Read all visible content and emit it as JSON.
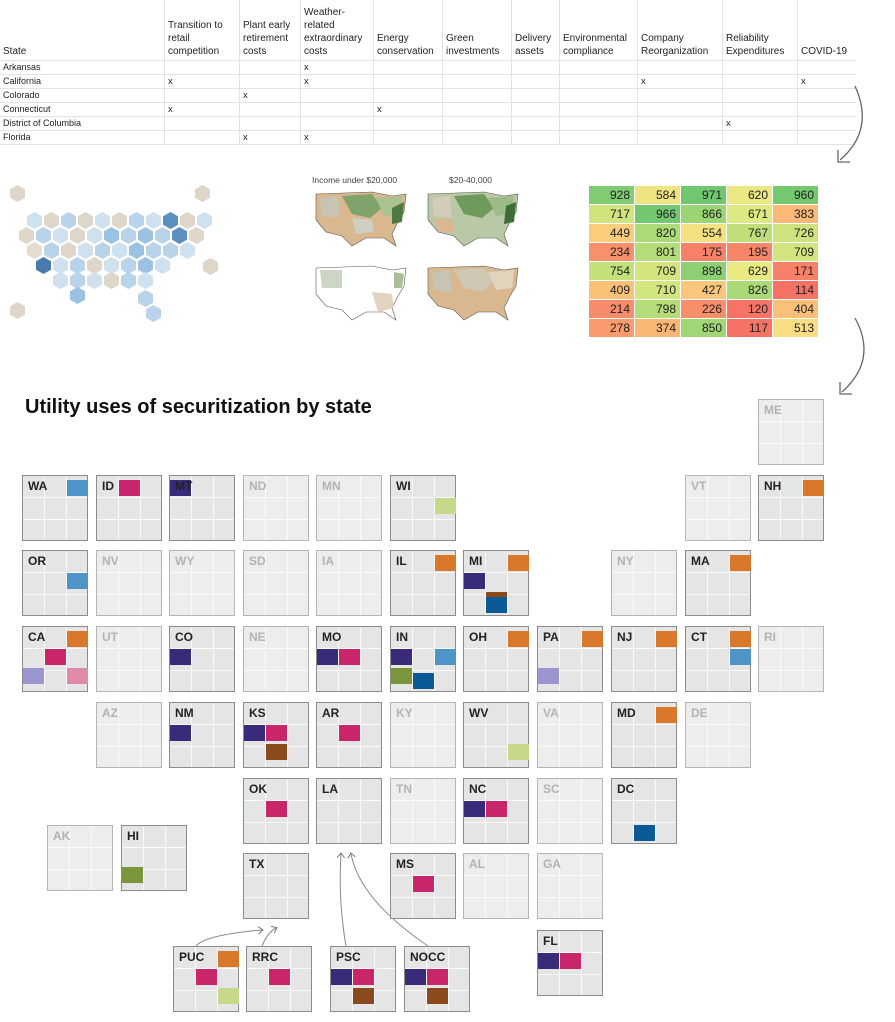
{
  "table": {
    "headers": [
      "State",
      "Transition to retail competition",
      "Plant early retirement costs",
      "Weather-related extraordinary costs",
      "Energy conservation",
      "Green investments",
      "Delivery assets",
      "Environmental compliance",
      "Company Reorganization",
      "Reliability Expenditures",
      "COVID-19"
    ],
    "rows": [
      [
        "Arkansas",
        "",
        "",
        "x",
        "",
        "",
        "",
        "",
        "",
        "",
        ""
      ],
      [
        "California",
        "x",
        "",
        "x",
        "",
        "",
        "",
        "",
        "x",
        "",
        "x"
      ],
      [
        "Colorado",
        "",
        "x",
        "",
        "",
        "",
        "",
        "",
        "",
        "",
        ""
      ],
      [
        "Connecticut",
        "x",
        "",
        "",
        "x",
        "",
        "",
        "",
        "",
        "",
        ""
      ],
      [
        "District of Columbia",
        "",
        "",
        "",
        "",
        "",
        "",
        "",
        "",
        "x",
        ""
      ],
      [
        "Florida",
        "",
        "x",
        "x",
        "",
        "",
        "",
        "",
        "",
        "",
        ""
      ]
    ]
  },
  "income_map": {
    "label1": "Income under $20,000",
    "label2": "$20-40,000"
  },
  "heatmap": [
    [
      928,
      584,
      971,
      620,
      960
    ],
    [
      717,
      966,
      866,
      671,
      383
    ],
    [
      449,
      820,
      554,
      767,
      726
    ],
    [
      234,
      801,
      175,
      195,
      709
    ],
    [
      754,
      709,
      898,
      629,
      171
    ],
    [
      409,
      710,
      427,
      826,
      114
    ],
    [
      214,
      798,
      226,
      120,
      404
    ],
    [
      278,
      374,
      850,
      117,
      513
    ]
  ],
  "main": {
    "title": "Utility uses of securitization by state",
    "colors": {
      "navy": "#3a2a7a",
      "magenta": "#c8256b",
      "orange": "#d9782a",
      "steel": "#4e94c6",
      "lime": "#c6d98a",
      "brown": "#8a4a1e",
      "blue": "#0b5a96",
      "olive": "#7a953a",
      "lavender": "#9a94cf",
      "pink": "#e08aaa"
    },
    "states": [
      {
        "ab": "ME",
        "empty": true
      },
      {
        "ab": "WA",
        "empty": false
      },
      {
        "ab": "ID",
        "empty": false
      },
      {
        "ab": "MT",
        "empty": false
      },
      {
        "ab": "ND",
        "empty": true
      },
      {
        "ab": "MN",
        "empty": true
      },
      {
        "ab": "WI",
        "empty": false
      },
      {
        "ab": "VT",
        "empty": true
      },
      {
        "ab": "NH",
        "empty": false
      },
      {
        "ab": "OR",
        "empty": false
      },
      {
        "ab": "NV",
        "empty": true
      },
      {
        "ab": "WY",
        "empty": true
      },
      {
        "ab": "SD",
        "empty": true
      },
      {
        "ab": "IA",
        "empty": true
      },
      {
        "ab": "IL",
        "empty": false
      },
      {
        "ab": "MI",
        "empty": false
      },
      {
        "ab": "NY",
        "empty": true
      },
      {
        "ab": "MA",
        "empty": false
      },
      {
        "ab": "CA",
        "empty": false
      },
      {
        "ab": "UT",
        "empty": true
      },
      {
        "ab": "CO",
        "empty": false
      },
      {
        "ab": "NE",
        "empty": true
      },
      {
        "ab": "MO",
        "empty": false
      },
      {
        "ab": "IN",
        "empty": false
      },
      {
        "ab": "OH",
        "empty": false
      },
      {
        "ab": "PA",
        "empty": false
      },
      {
        "ab": "NJ",
        "empty": false
      },
      {
        "ab": "CT",
        "empty": false
      },
      {
        "ab": "RI",
        "empty": true
      },
      {
        "ab": "AZ",
        "empty": true
      },
      {
        "ab": "NM",
        "empty": false
      },
      {
        "ab": "KS",
        "empty": false
      },
      {
        "ab": "AR",
        "empty": false
      },
      {
        "ab": "KY",
        "empty": true
      },
      {
        "ab": "WV",
        "empty": false
      },
      {
        "ab": "VA",
        "empty": true
      },
      {
        "ab": "MD",
        "empty": false
      },
      {
        "ab": "DE",
        "empty": true
      },
      {
        "ab": "OK",
        "empty": false
      },
      {
        "ab": "LA",
        "empty": false
      },
      {
        "ab": "TN",
        "empty": true
      },
      {
        "ab": "NC",
        "empty": false
      },
      {
        "ab": "SC",
        "empty": true
      },
      {
        "ab": "DC",
        "empty": false
      },
      {
        "ab": "AK",
        "empty": true
      },
      {
        "ab": "HI",
        "empty": false
      },
      {
        "ab": "TX",
        "empty": false
      },
      {
        "ab": "MS",
        "empty": false
      },
      {
        "ab": "AL",
        "empty": true
      },
      {
        "ab": "GA",
        "empty": true
      },
      {
        "ab": "FL",
        "empty": false
      },
      {
        "ab": "PUC",
        "empty": false
      },
      {
        "ab": "RRC",
        "empty": false
      },
      {
        "ab": "PSC",
        "empty": false
      },
      {
        "ab": "NOCC",
        "empty": false
      }
    ]
  }
}
